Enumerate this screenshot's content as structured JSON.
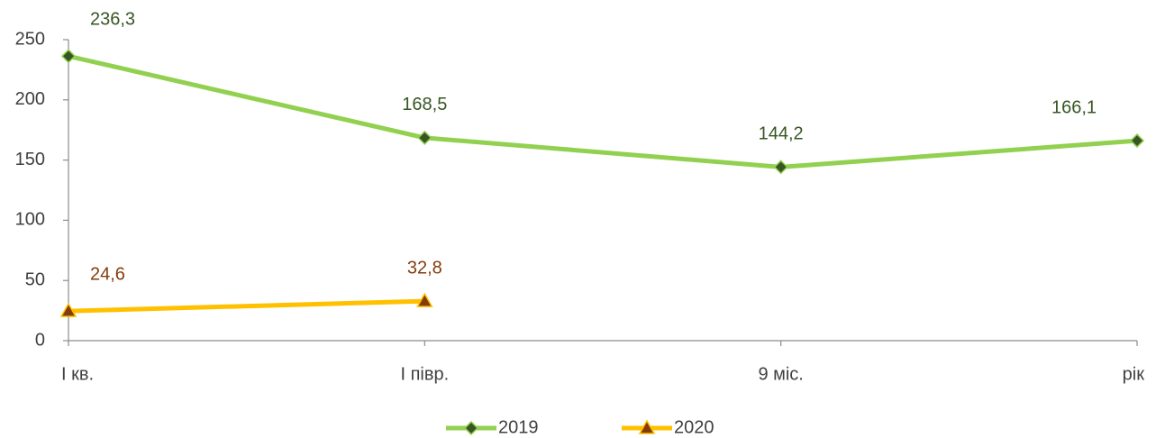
{
  "chart_data": {
    "type": "line",
    "categories": [
      "I кв.",
      "I півр.",
      "9 міс.",
      "рік"
    ],
    "series": [
      {
        "name": "2019",
        "color": "#92d050",
        "marker_color": "#375623",
        "label_color": "#375623",
        "marker": "diamond",
        "values": [
          236.3,
          168.5,
          144.2,
          166.1
        ],
        "value_labels": [
          "236,3",
          "168,5",
          "144,2",
          "166,1"
        ]
      },
      {
        "name": "2020",
        "color": "#ffc000",
        "marker_color": "#843c0c",
        "label_color": "#843c0c",
        "marker": "triangle",
        "values": [
          24.6,
          32.8,
          null,
          null
        ],
        "value_labels": [
          "24,6",
          "32,8",
          null,
          null
        ]
      }
    ],
    "ylim": [
      0,
      250
    ],
    "yticks": [
      0,
      50,
      100,
      150,
      200,
      250
    ],
    "grid": false,
    "legend": "bottom"
  }
}
